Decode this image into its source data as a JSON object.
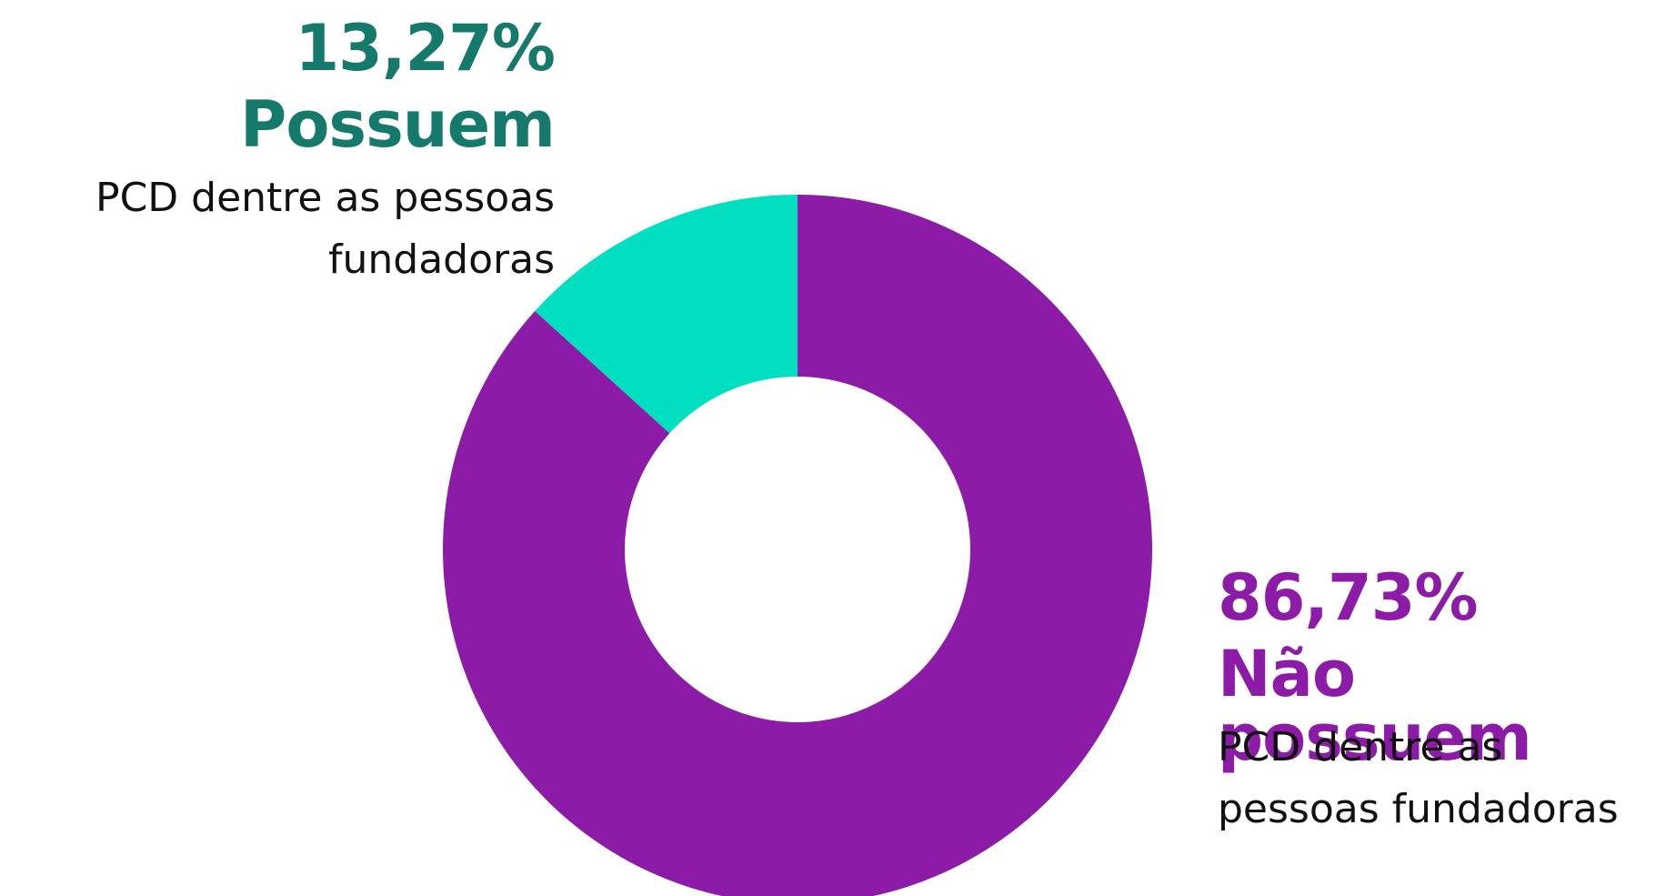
{
  "chart_data": {
    "type": "pie",
    "donut": true,
    "categories": [
      "Possuem",
      "Não possuem"
    ],
    "values": [
      13.27,
      86.73
    ],
    "value_labels": [
      "13,27%",
      "86,73%"
    ],
    "colors": [
      "#00E0C0",
      "#8C1BA8"
    ],
    "label_colors": [
      "#157A6B",
      "#8C1BA8"
    ],
    "descriptions": [
      "PCD dentre as pessoas fundadoras",
      "PCD dentre as pessoas fundadoras"
    ],
    "legend_placement": "beside-slices"
  },
  "labels": {
    "left": {
      "pct": "13,27%",
      "name": "Possuem",
      "desc_line1": "PCD dentre as pessoas",
      "desc_line2": "fundadoras"
    },
    "right": {
      "pct": "86,73%",
      "name": "Não possuem",
      "desc_line1": "PCD dentre as",
      "desc_line2": "pessoas fundadoras"
    }
  }
}
